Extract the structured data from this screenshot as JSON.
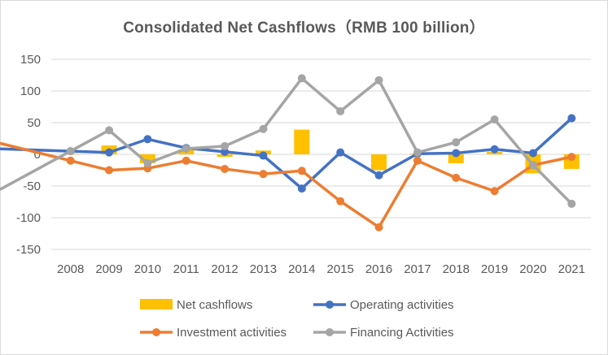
{
  "chart_data": {
    "type": "bar+line",
    "title": "Consolidated Net Cashflows（RMB 100 billion）",
    "categories": [
      "2008",
      "2009",
      "2010",
      "2011",
      "2012",
      "2013",
      "2014",
      "2015",
      "2016",
      "2017",
      "2018",
      "2019",
      "2020",
      "2021"
    ],
    "ylim": [
      -150,
      150
    ],
    "yticks": [
      150,
      100,
      50,
      0,
      -50,
      -100,
      -150
    ],
    "grid": true,
    "legend_position": "bottom",
    "series": [
      {
        "name": "Net cashflows",
        "type": "bar",
        "color": "#ffc000",
        "values": [
          1,
          14,
          -14,
          8,
          -4,
          6,
          39,
          0,
          -25,
          1,
          -14,
          4,
          -30,
          -23
        ]
      },
      {
        "name": "Operating activities",
        "type": "line",
        "color": "#4472c4",
        "values": [
          5,
          3,
          24,
          10,
          4,
          -2,
          -54,
          3,
          -33,
          1,
          2,
          8,
          2,
          57
        ]
      },
      {
        "name": "Investment activities",
        "type": "line",
        "color": "#ed7d31",
        "values": [
          -10,
          -25,
          -22,
          -10,
          -23,
          -31,
          -26,
          -74,
          -115,
          -10,
          -37,
          -58,
          -17,
          -4
        ]
      },
      {
        "name": "Financing Activities",
        "type": "line",
        "color": "#a5a5a5",
        "values": [
          5,
          38,
          -14,
          9,
          13,
          40,
          120,
          68,
          117,
          3,
          19,
          55,
          -17,
          -78
        ]
      }
    ]
  }
}
